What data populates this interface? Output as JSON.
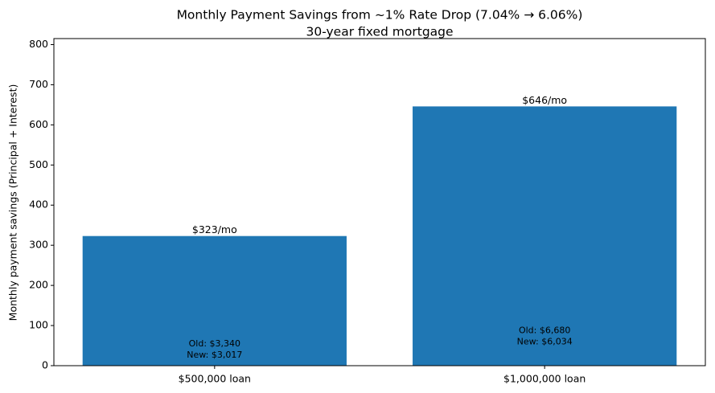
{
  "chart_data": {
    "type": "bar",
    "title": "Monthly Payment Savings from ~1% Rate Drop (7.04% → 6.06%)",
    "subtitle": "30-year fixed mortgage",
    "y_label": "Monthly payment savings (Principal + Interest)",
    "categories": [
      "$500,000 loan",
      "$1,000,000 loan"
    ],
    "values": [
      323,
      646
    ],
    "value_labels": [
      "$323/mo",
      "$646/mo"
    ],
    "bar_annotations": [
      [
        "Old: $3,340",
        "New: $3,017"
      ],
      [
        "Old: $6,680",
        "New: $6,034"
      ]
    ],
    "color": "#1f77b4",
    "ylim": [
      0,
      815
    ],
    "yticks": [
      0,
      100,
      200,
      300,
      400,
      500,
      600,
      700,
      800
    ],
    "grid": false
  }
}
